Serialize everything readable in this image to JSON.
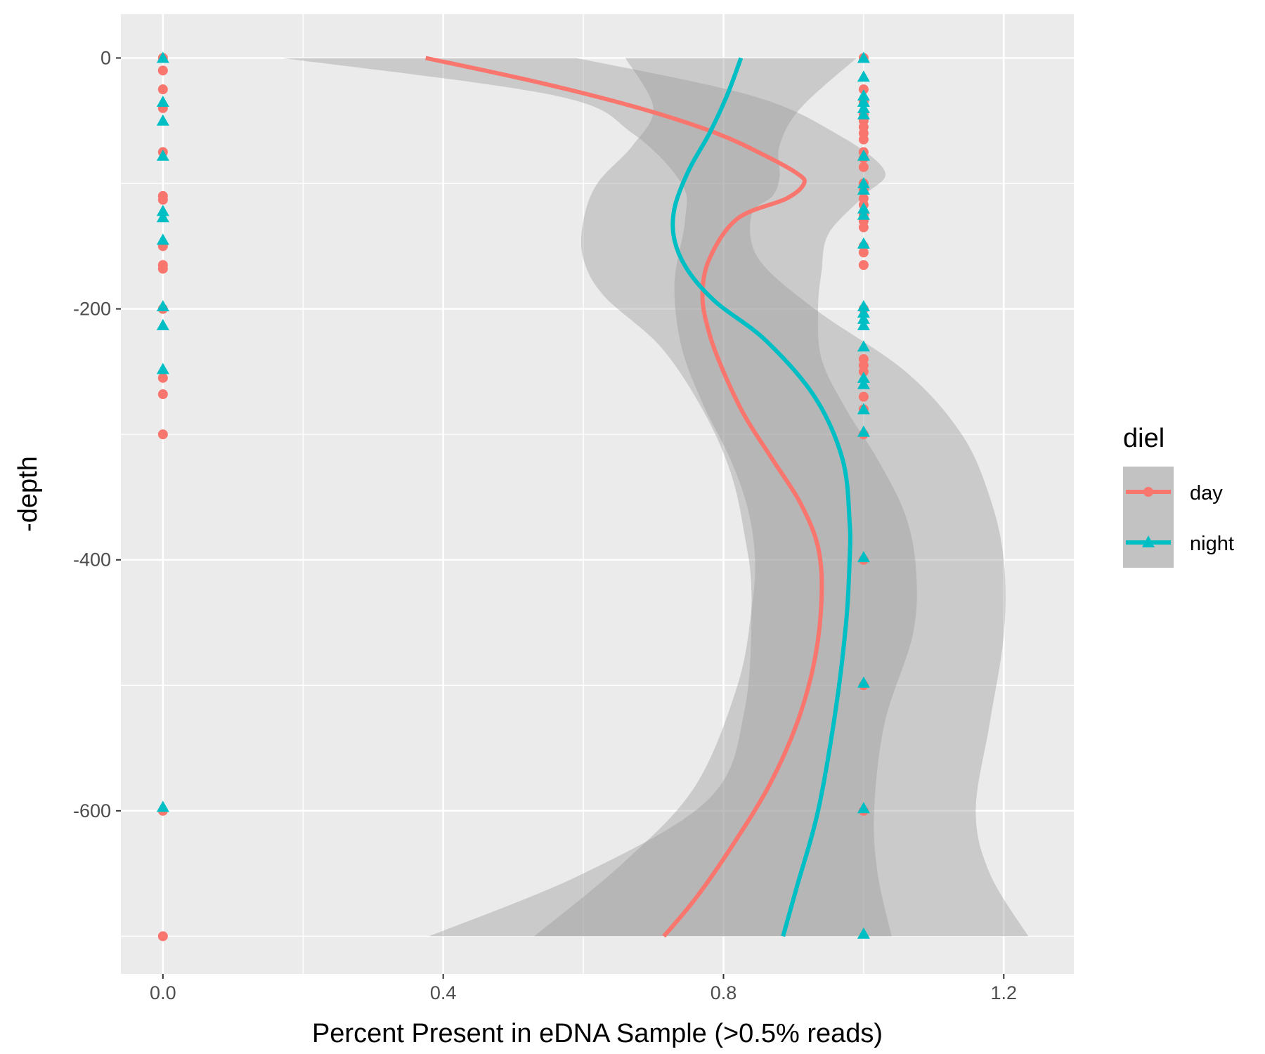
{
  "chart_data": {
    "type": "scatter",
    "title": "",
    "xlabel": "Percent Present in eDNA Sample (>0.5% reads)",
    "ylabel": "-depth",
    "xlim": [
      -0.06,
      1.3
    ],
    "ylim": [
      -730,
      35
    ],
    "x_ticks": [
      0.0,
      0.4,
      0.8,
      1.2
    ],
    "x_tick_labels": [
      "0.0",
      "0.4",
      "0.8",
      "1.2"
    ],
    "y_ticks": [
      0,
      -200,
      -400,
      -600
    ],
    "y_tick_labels": [
      "0",
      "-200",
      "-400",
      "-600"
    ],
    "grid": true,
    "legend": {
      "title": "diel",
      "position": "right",
      "entries": [
        "day",
        "night"
      ]
    },
    "colors": {
      "day": "#F8766D",
      "night": "#00BFC4",
      "band": "#999999",
      "panel": "#EBEBEB"
    },
    "series": [
      {
        "name": "day",
        "marker": "circle",
        "points": [
          {
            "x": 0,
            "y": 0
          },
          {
            "x": 0,
            "y": -10
          },
          {
            "x": 0,
            "y": -25
          },
          {
            "x": 0,
            "y": -40
          },
          {
            "x": 0,
            "y": -75
          },
          {
            "x": 0,
            "y": -110
          },
          {
            "x": 0,
            "y": -113
          },
          {
            "x": 0,
            "y": -150
          },
          {
            "x": 0,
            "y": -165
          },
          {
            "x": 0,
            "y": -168
          },
          {
            "x": 0,
            "y": -200
          },
          {
            "x": 0,
            "y": -255
          },
          {
            "x": 0,
            "y": -268
          },
          {
            "x": 0,
            "y": -300
          },
          {
            "x": 0,
            "y": -600
          },
          {
            "x": 0,
            "y": -700
          },
          {
            "x": 1,
            "y": 0
          },
          {
            "x": 1,
            "y": -25
          },
          {
            "x": 1,
            "y": -35
          },
          {
            "x": 1,
            "y": -45
          },
          {
            "x": 1,
            "y": -50
          },
          {
            "x": 1,
            "y": -55
          },
          {
            "x": 1,
            "y": -60
          },
          {
            "x": 1,
            "y": -65
          },
          {
            "x": 1,
            "y": -75
          },
          {
            "x": 1,
            "y": -80
          },
          {
            "x": 1,
            "y": -87
          },
          {
            "x": 1,
            "y": -100
          },
          {
            "x": 1,
            "y": -105
          },
          {
            "x": 1,
            "y": -112
          },
          {
            "x": 1,
            "y": -117
          },
          {
            "x": 1,
            "y": -125
          },
          {
            "x": 1,
            "y": -130
          },
          {
            "x": 1,
            "y": -135
          },
          {
            "x": 1,
            "y": -150
          },
          {
            "x": 1,
            "y": -155
          },
          {
            "x": 1,
            "y": -165
          },
          {
            "x": 1,
            "y": -200
          },
          {
            "x": 1,
            "y": -240
          },
          {
            "x": 1,
            "y": -245
          },
          {
            "x": 1,
            "y": -250
          },
          {
            "x": 1,
            "y": -270
          },
          {
            "x": 1,
            "y": -280
          },
          {
            "x": 1,
            "y": -300
          },
          {
            "x": 1,
            "y": -400
          },
          {
            "x": 1,
            "y": -500
          },
          {
            "x": 1,
            "y": -600
          }
        ],
        "smooth": [
          {
            "x": 0.375,
            "y": 0
          },
          {
            "x": 0.54,
            "y": -20
          },
          {
            "x": 0.68,
            "y": -40
          },
          {
            "x": 0.79,
            "y": -60
          },
          {
            "x": 0.86,
            "y": -78
          },
          {
            "x": 0.905,
            "y": -92
          },
          {
            "x": 0.915,
            "y": -100
          },
          {
            "x": 0.89,
            "y": -112
          },
          {
            "x": 0.82,
            "y": -128
          },
          {
            "x": 0.78,
            "y": -160
          },
          {
            "x": 0.77,
            "y": -190
          },
          {
            "x": 0.78,
            "y": -220
          },
          {
            "x": 0.8,
            "y": -250
          },
          {
            "x": 0.83,
            "y": -285
          },
          {
            "x": 0.87,
            "y": -320
          },
          {
            "x": 0.91,
            "y": -355
          },
          {
            "x": 0.935,
            "y": -390
          },
          {
            "x": 0.94,
            "y": -430
          },
          {
            "x": 0.93,
            "y": -480
          },
          {
            "x": 0.905,
            "y": -530
          },
          {
            "x": 0.865,
            "y": -580
          },
          {
            "x": 0.81,
            "y": -630
          },
          {
            "x": 0.76,
            "y": -670
          },
          {
            "x": 0.715,
            "y": -700
          }
        ],
        "band_lower": [
          {
            "x": 0.17,
            "y": 0
          },
          {
            "x": 0.56,
            "y": -30
          },
          {
            "x": 0.67,
            "y": -60
          },
          {
            "x": 0.74,
            "y": -100
          },
          {
            "x": 0.745,
            "y": -130
          },
          {
            "x": 0.73,
            "y": -180
          },
          {
            "x": 0.74,
            "y": -230
          },
          {
            "x": 0.77,
            "y": -275
          },
          {
            "x": 0.81,
            "y": -320
          },
          {
            "x": 0.835,
            "y": -360
          },
          {
            "x": 0.845,
            "y": -400
          },
          {
            "x": 0.84,
            "y": -440
          },
          {
            "x": 0.82,
            "y": -500
          },
          {
            "x": 0.76,
            "y": -580
          },
          {
            "x": 0.66,
            "y": -640
          },
          {
            "x": 0.53,
            "y": -700
          }
        ],
        "band_upper": [
          {
            "x": 0.59,
            "y": 0
          },
          {
            "x": 0.84,
            "y": -30
          },
          {
            "x": 0.96,
            "y": -60
          },
          {
            "x": 1.03,
            "y": -90
          },
          {
            "x": 1.0,
            "y": -110
          },
          {
            "x": 0.95,
            "y": -140
          },
          {
            "x": 0.94,
            "y": -170
          },
          {
            "x": 0.935,
            "y": -200
          },
          {
            "x": 0.94,
            "y": -240
          },
          {
            "x": 0.975,
            "y": -280
          },
          {
            "x": 1.02,
            "y": -320
          },
          {
            "x": 1.06,
            "y": -365
          },
          {
            "x": 1.075,
            "y": -410
          },
          {
            "x": 1.07,
            "y": -460
          },
          {
            "x": 1.03,
            "y": -530
          },
          {
            "x": 1.015,
            "y": -600
          },
          {
            "x": 1.02,
            "y": -650
          },
          {
            "x": 1.04,
            "y": -700
          }
        ]
      },
      {
        "name": "night",
        "marker": "triangle",
        "points": [
          {
            "x": 0,
            "y": 0
          },
          {
            "x": 0,
            "y": -35
          },
          {
            "x": 0,
            "y": -50
          },
          {
            "x": 0,
            "y": -78
          },
          {
            "x": 0,
            "y": -122
          },
          {
            "x": 0,
            "y": -127
          },
          {
            "x": 0,
            "y": -145
          },
          {
            "x": 0,
            "y": -198
          },
          {
            "x": 0,
            "y": -213
          },
          {
            "x": 0,
            "y": -248
          },
          {
            "x": 0,
            "y": -597
          },
          {
            "x": 1,
            "y": 0
          },
          {
            "x": 1,
            "y": -15
          },
          {
            "x": 1,
            "y": -30
          },
          {
            "x": 1,
            "y": -35
          },
          {
            "x": 1,
            "y": -40
          },
          {
            "x": 1,
            "y": -45
          },
          {
            "x": 1,
            "y": -78
          },
          {
            "x": 1,
            "y": -100
          },
          {
            "x": 1,
            "y": -105
          },
          {
            "x": 1,
            "y": -120
          },
          {
            "x": 1,
            "y": -125
          },
          {
            "x": 1,
            "y": -148
          },
          {
            "x": 1,
            "y": -198
          },
          {
            "x": 1,
            "y": -203
          },
          {
            "x": 1,
            "y": -208
          },
          {
            "x": 1,
            "y": -213
          },
          {
            "x": 1,
            "y": -230
          },
          {
            "x": 1,
            "y": -255
          },
          {
            "x": 1,
            "y": -260
          },
          {
            "x": 1,
            "y": -280
          },
          {
            "x": 1,
            "y": -298
          },
          {
            "x": 1,
            "y": -398
          },
          {
            "x": 1,
            "y": -498
          },
          {
            "x": 1,
            "y": -598
          },
          {
            "x": 1,
            "y": -698
          }
        ],
        "smooth": [
          {
            "x": 0.825,
            "y": 0
          },
          {
            "x": 0.805,
            "y": -30
          },
          {
            "x": 0.78,
            "y": -60
          },
          {
            "x": 0.75,
            "y": -90
          },
          {
            "x": 0.73,
            "y": -120
          },
          {
            "x": 0.73,
            "y": -145
          },
          {
            "x": 0.75,
            "y": -170
          },
          {
            "x": 0.79,
            "y": -195
          },
          {
            "x": 0.86,
            "y": -225
          },
          {
            "x": 0.93,
            "y": -270
          },
          {
            "x": 0.97,
            "y": -320
          },
          {
            "x": 0.98,
            "y": -370
          },
          {
            "x": 0.98,
            "y": -400
          },
          {
            "x": 0.975,
            "y": -450
          },
          {
            "x": 0.96,
            "y": -520
          },
          {
            "x": 0.935,
            "y": -600
          },
          {
            "x": 0.905,
            "y": -660
          },
          {
            "x": 0.885,
            "y": -700
          }
        ],
        "band_lower": [
          {
            "x": 0.66,
            "y": 0
          },
          {
            "x": 0.7,
            "y": -40
          },
          {
            "x": 0.67,
            "y": -70
          },
          {
            "x": 0.62,
            "y": -100
          },
          {
            "x": 0.6,
            "y": -130
          },
          {
            "x": 0.6,
            "y": -160
          },
          {
            "x": 0.63,
            "y": -190
          },
          {
            "x": 0.71,
            "y": -230
          },
          {
            "x": 0.77,
            "y": -280
          },
          {
            "x": 0.81,
            "y": -330
          },
          {
            "x": 0.83,
            "y": -380
          },
          {
            "x": 0.84,
            "y": -430
          },
          {
            "x": 0.83,
            "y": -520
          },
          {
            "x": 0.78,
            "y": -590
          },
          {
            "x": 0.6,
            "y": -650
          },
          {
            "x": 0.38,
            "y": -700
          }
        ],
        "band_upper": [
          {
            "x": 0.99,
            "y": 0
          },
          {
            "x": 0.91,
            "y": -40
          },
          {
            "x": 0.88,
            "y": -70
          },
          {
            "x": 0.88,
            "y": -95
          },
          {
            "x": 0.87,
            "y": -110
          },
          {
            "x": 0.84,
            "y": -125
          },
          {
            "x": 0.85,
            "y": -160
          },
          {
            "x": 0.93,
            "y": -200
          },
          {
            "x": 1.06,
            "y": -250
          },
          {
            "x": 1.14,
            "y": -300
          },
          {
            "x": 1.18,
            "y": -350
          },
          {
            "x": 1.2,
            "y": -400
          },
          {
            "x": 1.2,
            "y": -460
          },
          {
            "x": 1.18,
            "y": -530
          },
          {
            "x": 1.16,
            "y": -600
          },
          {
            "x": 1.18,
            "y": -650
          },
          {
            "x": 1.235,
            "y": -700
          }
        ]
      }
    ]
  }
}
